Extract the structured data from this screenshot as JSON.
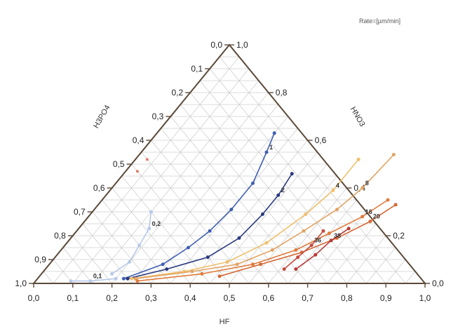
{
  "chart_data": {
    "type": "ternary-line",
    "title": "",
    "annotation": "Rate=[µm/min]",
    "axes": {
      "bottom": {
        "label": "HF",
        "ticks": [
          "0,0",
          "0,1",
          "0,2",
          "0,3",
          "0,4",
          "0,5",
          "0,6",
          "0,7",
          "0,8",
          "0,9",
          "1,0"
        ]
      },
      "left": {
        "label": "H3PO4",
        "ticks": [
          "0,0",
          "0,1",
          "0,2",
          "0,3",
          "0,4",
          "0,5",
          "0,6",
          "0,7",
          "0,8",
          "0,9",
          "1,0"
        ]
      },
      "right": {
        "label": "HNO3",
        "ticks": [
          "0,0",
          "0,2",
          "0,4",
          "0,6",
          "0,8",
          "1,0"
        ]
      }
    },
    "grid": true,
    "series": [
      {
        "name": "0,1",
        "color": "#b7c9e8",
        "points": [
          [
            0.09,
            0.01
          ],
          [
            0.14,
            0.01
          ],
          [
            0.2,
            0.02
          ]
        ]
      },
      {
        "name": "0,2",
        "color": "#b7c9e8",
        "points": [
          [
            0.18,
            0.04
          ],
          [
            0.2,
            0.09
          ],
          [
            0.19,
            0.16
          ],
          [
            0.18,
            0.23
          ],
          [
            0.15,
            0.3
          ]
        ]
      },
      {
        "name": "1",
        "color": "#3f5fb0",
        "points": [
          [
            0.22,
            0.02
          ],
          [
            0.29,
            0.08
          ],
          [
            0.32,
            0.15
          ],
          [
            0.34,
            0.22
          ],
          [
            0.35,
            0.31
          ],
          [
            0.35,
            0.42
          ],
          [
            0.32,
            0.55
          ],
          [
            0.3,
            0.63
          ]
        ]
      },
      {
        "name": "2",
        "color": "#2a3a80",
        "points": [
          [
            0.23,
            0.02
          ],
          [
            0.31,
            0.06
          ],
          [
            0.39,
            0.11
          ],
          [
            0.43,
            0.19
          ],
          [
            0.44,
            0.29
          ],
          [
            0.44,
            0.37
          ],
          [
            0.43,
            0.46
          ]
        ]
      },
      {
        "name": "4",
        "color": "#efbf6a",
        "points": [
          [
            0.24,
            0.02
          ],
          [
            0.36,
            0.05
          ],
          [
            0.45,
            0.09
          ],
          [
            0.51,
            0.17
          ],
          [
            0.55,
            0.29
          ],
          [
            0.57,
            0.39
          ],
          [
            0.57,
            0.52
          ]
        ]
      },
      {
        "name": "8",
        "color": "#e2a464",
        "points": [
          [
            0.25,
            0.02
          ],
          [
            0.38,
            0.05
          ],
          [
            0.48,
            0.08
          ],
          [
            0.54,
            0.14
          ],
          [
            0.58,
            0.22
          ],
          [
            0.62,
            0.31
          ],
          [
            0.64,
            0.4
          ],
          [
            0.65,
            0.54
          ]
        ]
      },
      {
        "name": "16",
        "color": "#e07b3c",
        "points": [
          [
            0.26,
            0.01
          ],
          [
            0.41,
            0.04
          ],
          [
            0.52,
            0.08
          ],
          [
            0.6,
            0.14
          ],
          [
            0.65,
            0.21
          ],
          [
            0.7,
            0.28
          ],
          [
            0.73,
            0.35
          ]
        ]
      },
      {
        "name": "20",
        "color": "#d66a38",
        "points": [
          [
            0.46,
            0.03
          ],
          [
            0.54,
            0.08
          ],
          [
            0.62,
            0.13
          ],
          [
            0.68,
            0.19
          ],
          [
            0.73,
            0.26
          ],
          [
            0.76,
            0.33
          ]
        ]
      },
      {
        "name": "36",
        "color": "#c54a3c",
        "points": [
          [
            0.61,
            0.06
          ],
          [
            0.62,
            0.11
          ],
          [
            0.63,
            0.16
          ],
          [
            0.63,
            0.22
          ]
        ]
      },
      {
        "name": "38",
        "color": "#b83a36",
        "points": [
          [
            0.64,
            0.06
          ],
          [
            0.66,
            0.12
          ],
          [
            0.67,
            0.18
          ],
          [
            0.69,
            0.23
          ]
        ]
      }
    ]
  },
  "extra_markers": [
    {
      "color": "#e07b6a",
      "point": [
        0.03,
        0.52
      ]
    },
    {
      "color": "#e07b6a",
      "point": [
        0.03,
        0.47
      ]
    }
  ]
}
